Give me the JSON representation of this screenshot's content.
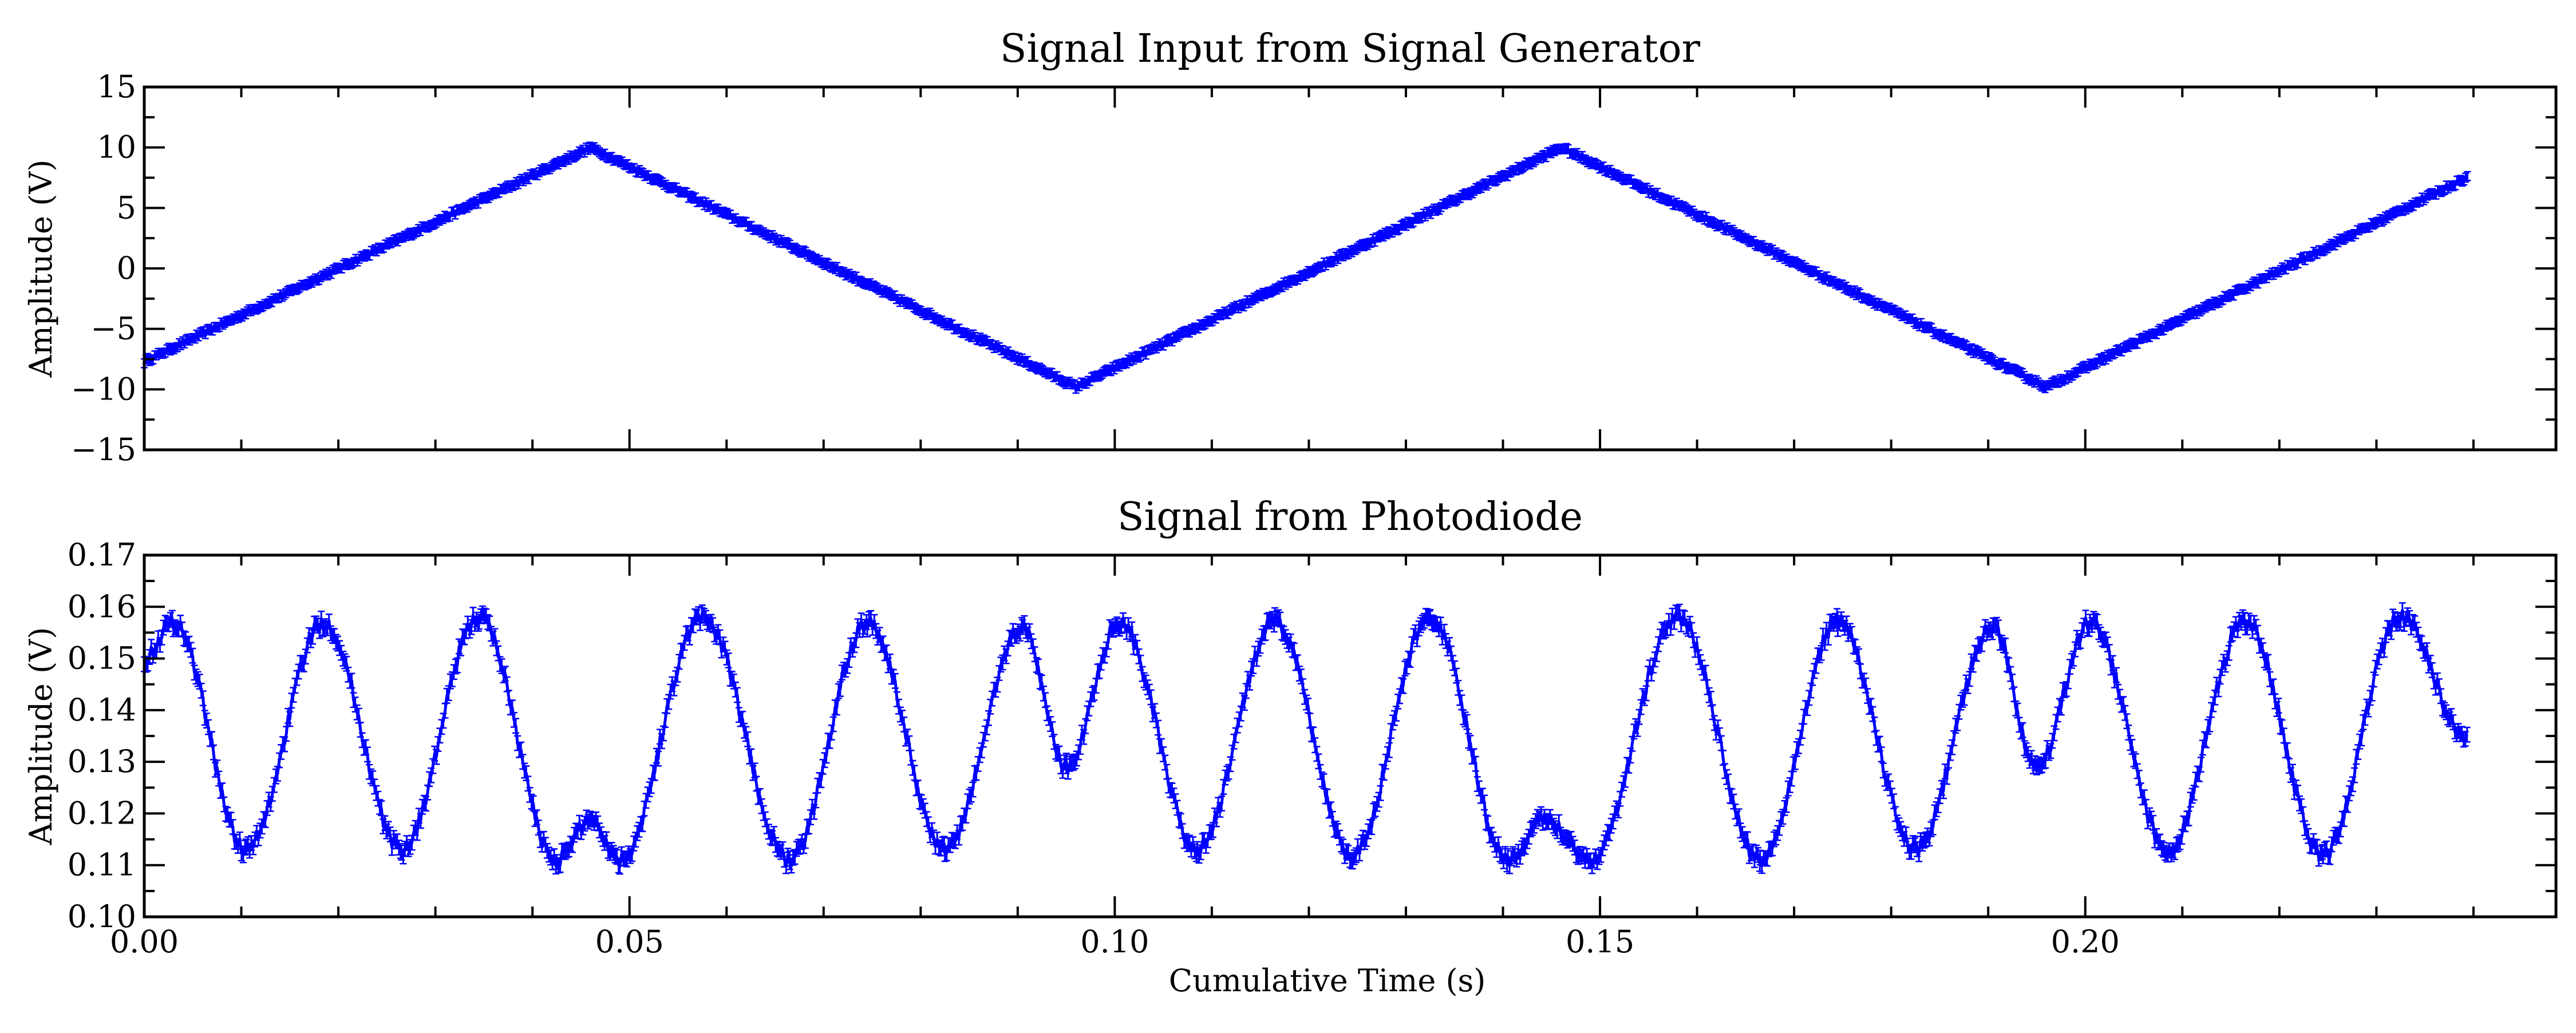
{
  "figure": {
    "background": "#ffffff",
    "line_color": "#0000ff",
    "axis_color": "#000000"
  },
  "chart_data": [
    {
      "type": "line",
      "title": "Signal Input from Signal Generator",
      "xlabel": "",
      "ylabel": "Amplitude (V)",
      "xlim": [
        0,
        0.2485
      ],
      "ylim": [
        -15,
        15
      ],
      "xticks": [
        0,
        0.05,
        0.1,
        0.15,
        0.2
      ],
      "xtick_labels": [],
      "yticks": [
        -15,
        -10,
        -5,
        0,
        5,
        10,
        15
      ],
      "ytick_labels": [
        "−15",
        "−10",
        "−5",
        "0",
        "5",
        "10",
        "15"
      ],
      "grid": false,
      "series": [
        {
          "color": "#0000ff",
          "error_bars": true,
          "x": [
            0.0,
            0.046,
            0.096,
            0.146,
            0.196,
            0.2395
          ],
          "y": [
            -7.7,
            10.0,
            -9.8,
            10.0,
            -9.8,
            7.6
          ]
        }
      ]
    },
    {
      "type": "line",
      "title": "Signal from Photodiode",
      "xlabel": "Cumulative Time (s)",
      "ylabel": "Amplitude (V)",
      "xlim": [
        0,
        0.2485
      ],
      "ylim": [
        0.1,
        0.17
      ],
      "xticks": [
        0,
        0.05,
        0.1,
        0.15,
        0.2
      ],
      "xtick_labels": [
        "0.00",
        "0.05",
        "0.10",
        "0.15",
        "0.20"
      ],
      "yticks": [
        0.1,
        0.11,
        0.12,
        0.13,
        0.14,
        0.15,
        0.16,
        0.17
      ],
      "ytick_labels": [
        "0.10",
        "0.11",
        "0.12",
        "0.13",
        "0.14",
        "0.15",
        "0.16",
        "0.17"
      ],
      "grid": false,
      "series": [
        {
          "color": "#0000ff",
          "error_bars": true,
          "x": [
            0.0,
            0.003,
            0.0105,
            0.0185,
            0.0265,
            0.0345,
            0.0425,
            0.046,
            0.049,
            0.0575,
            0.0665,
            0.0745,
            0.0825,
            0.0905,
            0.095,
            0.1005,
            0.1085,
            0.1165,
            0.1245,
            0.1325,
            0.1405,
            0.1445,
            0.149,
            0.158,
            0.1665,
            0.1745,
            0.1825,
            0.1905,
            0.195,
            0.2005,
            0.2085,
            0.2165,
            0.2245,
            0.2325,
            0.2395
          ],
          "y": [
            0.15,
            0.157,
            0.113,
            0.157,
            0.113,
            0.158,
            0.111,
            0.119,
            0.111,
            0.158,
            0.111,
            0.157,
            0.113,
            0.156,
            0.129,
            0.157,
            0.113,
            0.157,
            0.112,
            0.158,
            0.111,
            0.119,
            0.111,
            0.158,
            0.111,
            0.157,
            0.113,
            0.156,
            0.129,
            0.157,
            0.113,
            0.157,
            0.112,
            0.158,
            0.134
          ]
        }
      ]
    }
  ]
}
